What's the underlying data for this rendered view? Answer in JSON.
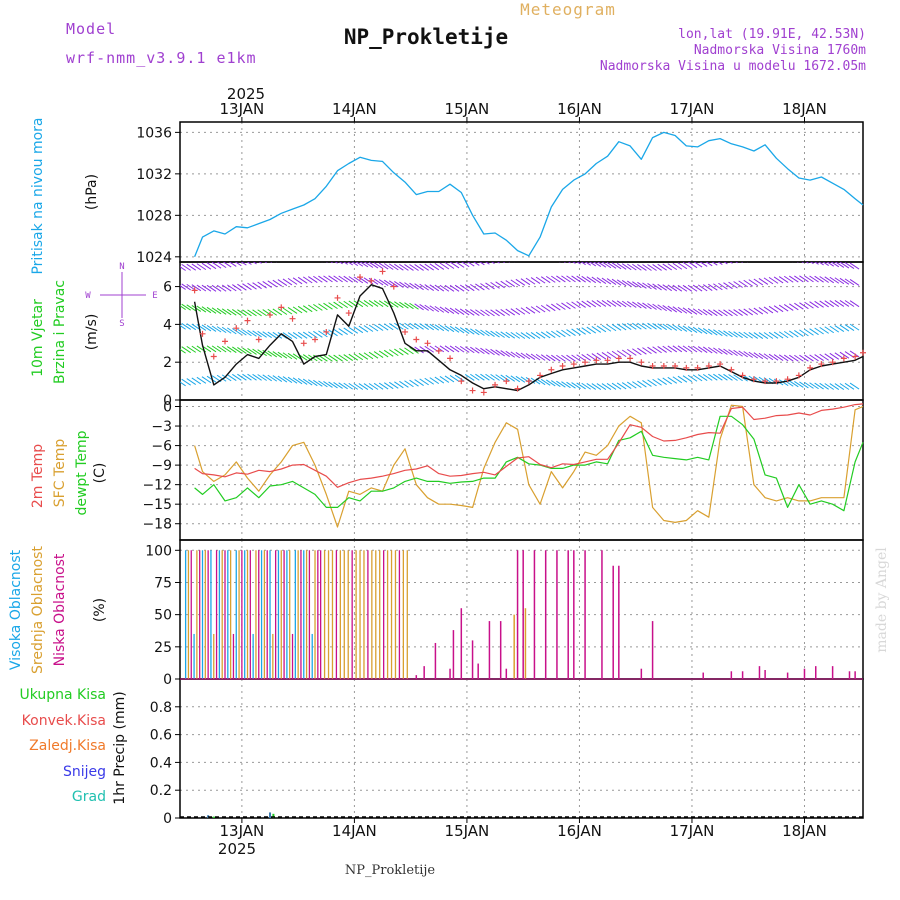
{
  "header": {
    "model_label": "Model",
    "model_name": "wrf-nmm_v3.9.1 e1km",
    "title": "NP_Prokletije",
    "meteogram_label": "Meteogram",
    "lonlat": "lon,lat (19.91E, 42.53N)",
    "altitude": "Nadmorska Visina 1760m",
    "model_altitude": "Nadmorska Visina u modelu 1672.05m",
    "footer_station": "NP_Prokletije",
    "watermark": "made by Angel"
  },
  "colors": {
    "pressure": "#1aa7e8",
    "wind_green": "#22cc22",
    "temp_2m": "#e84c4c",
    "temp_sfc": "#d9a030",
    "dewpt": "#22cc22",
    "cloud_high": "#1aa7e8",
    "cloud_mid": "#d9a030",
    "cloud_low": "#c8108a",
    "precip_total": "#22cc22",
    "precip_conv": "#e84c4c",
    "precip_frozen": "#f07a2a",
    "snow": "#3a3ae8",
    "hail": "#20c0b0",
    "wind_compass": "#a040d0"
  },
  "chart_data": [
    {
      "type": "line",
      "panel": "pressure",
      "ylabel_main": "Pritisak na nivou mora",
      "unit": "(hPa)",
      "ylim": [
        1023.5,
        1037
      ],
      "yticks": [
        1024,
        1028,
        1032,
        1036
      ],
      "x_days": [
        12.58,
        12.65,
        12.75,
        12.85,
        12.95,
        13.05,
        13.15,
        13.25,
        13.35,
        13.45,
        13.55,
        13.65,
        13.75,
        13.85,
        13.95,
        14.05,
        14.15,
        14.25,
        14.35,
        14.45,
        14.55,
        14.65,
        14.75,
        14.85,
        14.95,
        15.05,
        15.15,
        15.25,
        15.35,
        15.45,
        15.55,
        15.65,
        15.75,
        15.85,
        15.95,
        16.05,
        16.15,
        16.25,
        16.35,
        16.45,
        16.55,
        16.65,
        16.75,
        16.85,
        16.95,
        17.05,
        17.15,
        17.25,
        17.35,
        17.45,
        17.55,
        17.65,
        17.75,
        17.85,
        17.95,
        18.05,
        18.15,
        18.25,
        18.35,
        18.45,
        18.52
      ],
      "values": [
        1024.0,
        1025.9,
        1026.5,
        1026.2,
        1026.9,
        1026.8,
        1027.2,
        1027.6,
        1028.2,
        1028.6,
        1029.0,
        1029.6,
        1030.8,
        1032.3,
        1033.0,
        1033.6,
        1033.3,
        1033.2,
        1032.1,
        1031.2,
        1030.0,
        1030.3,
        1030.3,
        1031.0,
        1030.2,
        1028.0,
        1026.2,
        1026.3,
        1025.6,
        1024.6,
        1024.1,
        1025.9,
        1028.8,
        1030.5,
        1031.4,
        1032.0,
        1033.0,
        1033.7,
        1035.1,
        1034.7,
        1033.4,
        1035.5,
        1036.0,
        1035.7,
        1034.7,
        1034.6,
        1035.2,
        1035.4,
        1034.9,
        1034.6,
        1034.2,
        1034.8,
        1033.5,
        1032.5,
        1031.6,
        1031.4,
        1031.7,
        1031.1,
        1030.5,
        1029.6,
        1029.0
      ]
    },
    {
      "type": "line",
      "panel": "wind",
      "ylabel_main": "10m Vjetar",
      "ylabel_sub": "Brzina i Pravac",
      "unit": "(m/s)",
      "compass": [
        "N",
        "W",
        "E",
        "S"
      ],
      "ylim": [
        0,
        7.3
      ],
      "yticks": [
        0,
        2,
        4,
        6
      ],
      "x_days": [
        12.58,
        12.65,
        12.75,
        12.85,
        12.95,
        13.05,
        13.15,
        13.25,
        13.35,
        13.45,
        13.55,
        13.65,
        13.75,
        13.85,
        13.95,
        14.05,
        14.15,
        14.25,
        14.35,
        14.45,
        14.55,
        14.65,
        14.75,
        14.85,
        14.95,
        15.05,
        15.15,
        15.25,
        15.35,
        15.45,
        15.55,
        15.65,
        15.75,
        15.85,
        15.95,
        16.05,
        16.15,
        16.25,
        16.35,
        16.45,
        16.55,
        16.65,
        16.75,
        16.85,
        16.95,
        17.05,
        17.15,
        17.25,
        17.35,
        17.45,
        17.55,
        17.65,
        17.75,
        17.85,
        17.95,
        18.05,
        18.15,
        18.25,
        18.35,
        18.45,
        18.52
      ],
      "series": [
        {
          "values": [
            5.2,
            2.9,
            0.8,
            1.2,
            1.9,
            2.4,
            2.2,
            2.9,
            3.5,
            3.1,
            1.9,
            2.3,
            2.4,
            4.5,
            3.9,
            5.5,
            6.1,
            5.9,
            4.6,
            3.0,
            2.6,
            2.6,
            2.1,
            1.6,
            1.3,
            0.9,
            0.6,
            0.7,
            0.6,
            0.5,
            0.8,
            1.2,
            1.4,
            1.6,
            1.7,
            1.8,
            1.9,
            1.9,
            2.0,
            2.0,
            1.8,
            1.7,
            1.7,
            1.7,
            1.6,
            1.6,
            1.7,
            1.8,
            1.5,
            1.2,
            1.0,
            0.9,
            0.9,
            1.0,
            1.2,
            1.6,
            1.8,
            1.9,
            2.0,
            2.1,
            2.3
          ]
        },
        {
          "values": [
            5.8,
            3.5,
            2.3,
            3.1,
            3.8,
            4.2,
            3.2,
            4.5,
            4.9,
            4.3,
            3.0,
            3.2,
            3.6,
            5.4,
            4.6,
            6.5,
            6.3,
            6.8,
            6.0,
            3.6,
            3.2,
            3.0,
            2.6,
            2.2,
            1.0,
            0.5,
            0.4,
            0.8,
            1.0,
            0.6,
            1.0,
            1.3,
            1.6,
            1.8,
            1.9,
            2.0,
            2.1,
            2.1,
            2.2,
            2.2,
            2.0,
            1.8,
            1.8,
            1.8,
            1.7,
            1.7,
            1.8,
            1.9,
            1.6,
            1.3,
            1.1,
            1.0,
            1.0,
            1.1,
            1.3,
            1.7,
            1.9,
            2.0,
            2.2,
            2.3,
            2.5
          ]
        }
      ]
    },
    {
      "type": "line",
      "panel": "temperature",
      "ylabel_main": "2m Temp",
      "ylabel_sub": "SFC Temp",
      "ylabel_third": "dewpt Temp",
      "unit": "(C)",
      "ylim": [
        -20.5,
        1
      ],
      "yticks": [
        0,
        -3,
        -6,
        -9,
        -12,
        -15,
        -18
      ],
      "x_days": [
        12.58,
        12.65,
        12.75,
        12.85,
        12.95,
        13.05,
        13.15,
        13.25,
        13.35,
        13.45,
        13.55,
        13.65,
        13.75,
        13.85,
        13.95,
        14.05,
        14.15,
        14.25,
        14.35,
        14.45,
        14.55,
        14.65,
        14.75,
        14.85,
        14.95,
        15.05,
        15.15,
        15.25,
        15.35,
        15.45,
        15.55,
        15.65,
        15.75,
        15.85,
        15.95,
        16.05,
        16.15,
        16.25,
        16.35,
        16.45,
        16.55,
        16.65,
        16.75,
        16.85,
        16.95,
        17.05,
        17.15,
        17.25,
        17.35,
        17.45,
        17.55,
        17.65,
        17.75,
        17.85,
        17.95,
        18.05,
        18.15,
        18.25,
        18.35,
        18.45,
        18.52
      ],
      "series": [
        {
          "name": "2m Temp",
          "values": [
            -9.5,
            -10.3,
            -10.5,
            -10.8,
            -10.2,
            -10.4,
            -9.8,
            -10.0,
            -9.6,
            -9.0,
            -8.9,
            -9.8,
            -10.7,
            -12.4,
            -11.7,
            -11.2,
            -11.0,
            -10.7,
            -10.3,
            -9.8,
            -9.6,
            -9.1,
            -10.3,
            -10.7,
            -10.6,
            -10.3,
            -10.1,
            -10.5,
            -9.2,
            -7.9,
            -7.7,
            -8.9,
            -9.4,
            -8.8,
            -8.9,
            -8.5,
            -8.1,
            -8.1,
            -5.6,
            -2.8,
            -3.2,
            -4.6,
            -5.3,
            -5.2,
            -4.8,
            -4.3,
            -4.0,
            -4.1,
            -0.3,
            -0.1,
            -2.0,
            -1.8,
            -1.4,
            -1.3,
            -1.0,
            -1.3,
            -0.6,
            -0.4,
            -0.1,
            0.3,
            0.4
          ]
        },
        {
          "name": "SFC Temp",
          "values": [
            -6.0,
            -10.0,
            -11.5,
            -10.5,
            -8.5,
            -11.0,
            -13.0,
            -10.5,
            -8.5,
            -6.0,
            -5.5,
            -9.0,
            -13.5,
            -18.5,
            -13.0,
            -13.5,
            -12.5,
            -13.0,
            -9.0,
            -6.5,
            -12.0,
            -14.0,
            -15.0,
            -15.0,
            -15.2,
            -15.5,
            -9.5,
            -5.5,
            -2.5,
            -3.5,
            -12.0,
            -15.0,
            -10.0,
            -12.5,
            -10.0,
            -7.0,
            -7.5,
            -6.0,
            -3.0,
            -1.5,
            -2.5,
            -15.5,
            -17.5,
            -17.8,
            -17.5,
            -16.0,
            -17.0,
            -5.0,
            0.2,
            0.0,
            -12.0,
            -14.0,
            -14.5,
            -14.0,
            -14.5,
            -14.5,
            -14.0,
            -14.0,
            -14.0,
            -0.5,
            0.0
          ]
        },
        {
          "name": "dewpt Temp",
          "values": [
            -12.5,
            -13.5,
            -12.0,
            -14.5,
            -14.0,
            -12.5,
            -14.0,
            -12.2,
            -12.0,
            -11.5,
            -12.5,
            -13.5,
            -15.5,
            -15.5,
            -14.0,
            -14.5,
            -13.0,
            -13.0,
            -12.5,
            -11.5,
            -11.0,
            -11.5,
            -11.5,
            -11.8,
            -11.6,
            -11.5,
            -11.0,
            -11.0,
            -8.5,
            -7.8,
            -8.8,
            -9.0,
            -9.5,
            -9.5,
            -9.0,
            -9.0,
            -8.5,
            -8.8,
            -5.2,
            -4.8,
            -3.8,
            -7.5,
            -7.8,
            -8.0,
            -8.2,
            -7.8,
            -8.2,
            -1.5,
            -1.5,
            -2.8,
            -5.0,
            -10.5,
            -11.0,
            -15.5,
            -12.0,
            -15.0,
            -14.5,
            -15.0,
            -16.0,
            -8.5,
            -5.5
          ]
        }
      ]
    },
    {
      "type": "bar",
      "panel": "clouds",
      "ylabel_main": "Visoka Oblacnost",
      "ylabel_sub": "Srednja Oblacnost",
      "ylabel_third": "Niska Oblacnost",
      "unit": "(%)",
      "ylim": [
        0,
        108
      ],
      "yticks": [
        0,
        25,
        50,
        75,
        100
      ],
      "dense_high_mid_until_day": 13.7,
      "mid_only_until_day": 14.5,
      "low_bars_x_days": [
        14.55,
        14.62,
        14.72,
        14.85,
        14.88,
        14.95,
        15.05,
        15.1,
        15.2,
        15.3,
        15.35,
        15.45,
        15.5,
        15.6,
        15.7,
        15.8,
        15.9,
        15.95,
        16.05,
        16.2,
        16.3,
        16.35,
        16.55,
        16.65,
        17.1,
        17.35,
        17.45,
        17.6,
        17.65,
        17.85,
        18.0,
        18.1,
        18.25,
        18.4,
        18.45
      ],
      "low_bars_values": [
        3,
        10,
        28,
        8,
        38,
        55,
        30,
        12,
        45,
        45,
        8,
        100,
        100,
        100,
        100,
        100,
        100,
        100,
        100,
        100,
        88,
        88,
        8,
        45,
        5,
        6,
        6,
        10,
        7,
        5,
        8,
        10,
        10,
        6,
        6
      ],
      "mid_bars_x_days": [
        15.42,
        15.52
      ],
      "mid_bars_values": [
        50,
        55
      ]
    },
    {
      "type": "bar",
      "panel": "precip",
      "legend": [
        "Ukupna Kisa",
        "Konvek.Kisa",
        "Zaledj.Kisa",
        "Snijeg",
        "Grad"
      ],
      "unit": "1hr Precip (mm)",
      "ylim": [
        0,
        1.0
      ],
      "yticks": [
        0,
        0.2,
        0.4,
        0.6,
        0.8
      ],
      "ytick_labels": [
        "0",
        "0.2",
        "0.4",
        "0.6",
        "0.8"
      ],
      "bars_x_days": [
        12.7,
        12.75,
        13.25,
        13.28
      ],
      "bars_values": [
        0.02,
        0.01,
        0.04,
        0.03
      ]
    }
  ],
  "x_axis": {
    "x_min_day": 12.45,
    "x_max_day": 18.52,
    "day_ticks": [
      13,
      14,
      15,
      16,
      17,
      18
    ],
    "day_labels": [
      "13JAN",
      "14JAN",
      "15JAN",
      "16JAN",
      "17JAN",
      "18JAN"
    ],
    "year": "2025"
  }
}
